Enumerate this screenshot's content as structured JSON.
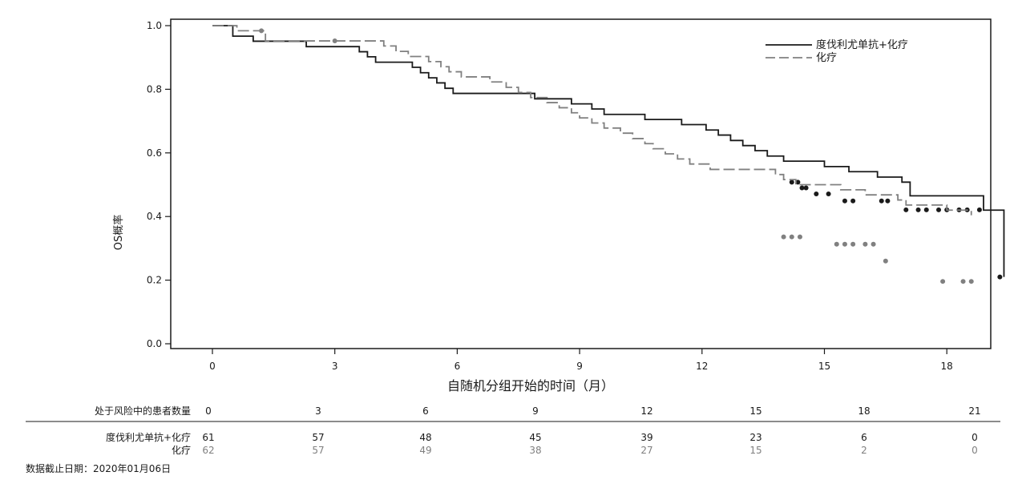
{
  "chart_data": {
    "type": "line",
    "xlabel": "自随机分组开始的时间（月）",
    "ylabel": "OS概率",
    "xlim": [
      0,
      21
    ],
    "ylim": [
      0,
      1
    ],
    "x_ticks": [
      0,
      3,
      6,
      9,
      12,
      15,
      18,
      21
    ],
    "y_ticks": [
      "0.0",
      "0.2",
      "0.4",
      "0.6",
      "0.8",
      "1.0"
    ],
    "legend_position": "top-right",
    "series": [
      {
        "name": "度伐利尤单抗+化疗",
        "color": "#1a1a1a",
        "dash": "solid",
        "steps": [
          [
            0,
            1.0
          ],
          [
            0.5,
            0.967
          ],
          [
            1.0,
            0.951
          ],
          [
            2.3,
            0.934
          ],
          [
            3.6,
            0.918
          ],
          [
            3.8,
            0.902
          ],
          [
            4.0,
            0.885
          ],
          [
            4.9,
            0.869
          ],
          [
            5.1,
            0.852
          ],
          [
            5.3,
            0.836
          ],
          [
            5.5,
            0.82
          ],
          [
            5.7,
            0.803
          ],
          [
            5.9,
            0.787
          ],
          [
            7.9,
            0.77
          ],
          [
            8.8,
            0.754
          ],
          [
            9.3,
            0.738
          ],
          [
            9.6,
            0.721
          ],
          [
            10.6,
            0.705
          ],
          [
            11.5,
            0.689
          ],
          [
            12.1,
            0.672
          ],
          [
            12.4,
            0.656
          ],
          [
            12.7,
            0.639
          ],
          [
            13.0,
            0.623
          ],
          [
            13.3,
            0.607
          ],
          [
            13.6,
            0.59
          ],
          [
            14.0,
            0.574
          ],
          [
            15.0,
            0.557
          ],
          [
            15.6,
            0.541
          ],
          [
            16.3,
            0.524
          ],
          [
            16.9,
            0.508
          ],
          [
            17.1,
            0.465
          ],
          [
            18.9,
            0.42
          ],
          [
            19.4,
            0.21
          ]
        ],
        "censored": [
          [
            14.2,
            0.508
          ],
          [
            14.35,
            0.508
          ],
          [
            14.45,
            0.49
          ],
          [
            14.55,
            0.49
          ],
          [
            14.8,
            0.471
          ],
          [
            15.1,
            0.471
          ],
          [
            15.5,
            0.449
          ],
          [
            15.7,
            0.449
          ],
          [
            16.4,
            0.449
          ],
          [
            16.55,
            0.449
          ],
          [
            17.0,
            0.421
          ],
          [
            17.3,
            0.421
          ],
          [
            17.5,
            0.421
          ],
          [
            17.8,
            0.421
          ],
          [
            18.0,
            0.421
          ],
          [
            18.3,
            0.421
          ],
          [
            18.5,
            0.421
          ],
          [
            18.8,
            0.421
          ],
          [
            19.3,
            0.21
          ]
        ]
      },
      {
        "name": "化疗",
        "color": "#808080",
        "dash": "dashed",
        "steps": [
          [
            0,
            1.0
          ],
          [
            0.6,
            0.984
          ],
          [
            1.3,
            0.952
          ],
          [
            4.2,
            0.936
          ],
          [
            4.5,
            0.919
          ],
          [
            4.8,
            0.903
          ],
          [
            5.3,
            0.887
          ],
          [
            5.6,
            0.871
          ],
          [
            5.8,
            0.855
          ],
          [
            6.1,
            0.839
          ],
          [
            6.8,
            0.823
          ],
          [
            7.2,
            0.806
          ],
          [
            7.5,
            0.79
          ],
          [
            7.8,
            0.774
          ],
          [
            8.2,
            0.758
          ],
          [
            8.5,
            0.742
          ],
          [
            8.8,
            0.726
          ],
          [
            9.0,
            0.71
          ],
          [
            9.3,
            0.694
          ],
          [
            9.6,
            0.678
          ],
          [
            10.0,
            0.662
          ],
          [
            10.3,
            0.645
          ],
          [
            10.6,
            0.629
          ],
          [
            10.8,
            0.613
          ],
          [
            11.1,
            0.597
          ],
          [
            11.4,
            0.581
          ],
          [
            11.7,
            0.565
          ],
          [
            12.2,
            0.548
          ],
          [
            13.8,
            0.532
          ],
          [
            14.0,
            0.516
          ],
          [
            14.3,
            0.5
          ],
          [
            15.4,
            0.484
          ],
          [
            16.0,
            0.468
          ],
          [
            16.8,
            0.452
          ],
          [
            17.0,
            0.436
          ],
          [
            18.0,
            0.42
          ],
          [
            18.6,
            0.404
          ]
        ],
        "censored": [
          [
            1.2,
            0.984
          ],
          [
            3.0,
            0.952
          ],
          [
            14.0,
            0.336
          ],
          [
            14.2,
            0.336
          ],
          [
            14.4,
            0.336
          ],
          [
            15.3,
            0.313
          ],
          [
            15.5,
            0.313
          ],
          [
            15.7,
            0.313
          ],
          [
            16.0,
            0.313
          ],
          [
            16.2,
            0.313
          ],
          [
            16.5,
            0.26
          ],
          [
            17.9,
            0.196
          ],
          [
            18.4,
            0.196
          ],
          [
            18.6,
            0.196
          ]
        ]
      }
    ]
  },
  "risk_table": {
    "header_label": "处于风险中的患者数量",
    "timepoints": [
      "0",
      "3",
      "6",
      "9",
      "12",
      "15",
      "18",
      "21"
    ],
    "rows": [
      {
        "label": "度伐利尤单抗+化疗",
        "counts": [
          "61",
          "57",
          "48",
          "45",
          "39",
          "23",
          "6",
          "0"
        ],
        "color": "#1a1a1a"
      },
      {
        "label": "化疗",
        "counts": [
          "62",
          "57",
          "49",
          "38",
          "27",
          "15",
          "2",
          "0"
        ],
        "color": "#808080"
      }
    ]
  },
  "footnote": "数据截止日期：2020年01月06日"
}
